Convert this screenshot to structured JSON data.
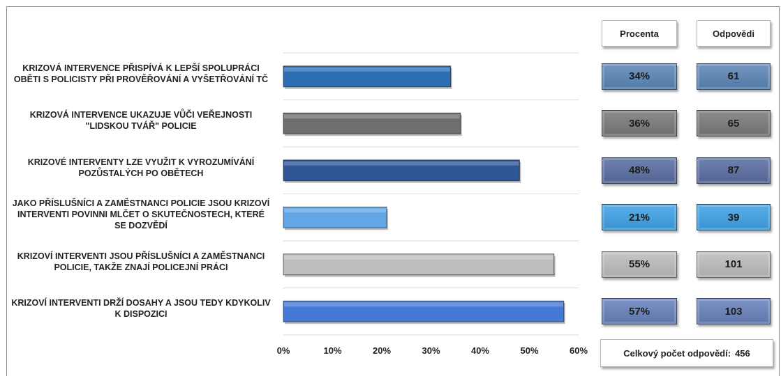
{
  "chart_data": {
    "type": "bar",
    "orientation": "horizontal",
    "categories": [
      "KRIZOVÁ INTERVENCE PŘISPÍVÁ K LEPŠÍ SPOLUPRÁCI OBĚTI S POLICISTY PŘI PROVĚŘOVÁNÍ A VYŠETŘOVÁNÍ TČ",
      "KRIZOVÁ INTERVENCE UKAZUJE VŮČI VEŘEJNOSTI \"LIDSKOU TVÁŘ\" POLICIE",
      "KRIZOVÉ INTERVENTY LZE VYUŽIT K VYROZUMÍVÁNÍ POZŮSTALÝCH PO OBĚTECH",
      "JAKO PŘÍSLUŠNÍCI A ZAMĚSTNANCI POLICIE JSOU KRIZOVÍ INTERVENTI POVINNI MLČET O SKUTEČNOSTECH, KTERÉ SE DOZVĚDÍ",
      "KRIZOVÍ INTERVENTI JSOU PŘÍSLUŠNÍCI A ZAMĚSTNANCI POLICIE, TAKŽE ZNAJÍ POLICEJNÍ PRÁCI",
      "KRIZOVÍ INTERVENTI DRŽÍ DOSAHY A JSOU TEDY KDYKOLIV K DISPOZICI"
    ],
    "values": [
      34,
      36,
      48,
      21,
      55,
      57
    ],
    "xlim": [
      0,
      60
    ],
    "xticks": [
      "0%",
      "10%",
      "20%",
      "30%",
      "40%",
      "50%",
      "60%"
    ],
    "grid": true,
    "colors": [
      "#2e6fb4",
      "#6e6e6e",
      "#2f5597",
      "#63a6e6",
      "#bdbdbd",
      "#4679d6"
    ],
    "table": {
      "header_percent": "Procenta",
      "header_count": "Odpovědi",
      "percent_labels": [
        "34%",
        "36%",
        "48%",
        "21%",
        "55%",
        "57%"
      ],
      "counts": [
        "61",
        "65",
        "87",
        "39",
        "101",
        "103"
      ],
      "box_colors": [
        "#5b86b7",
        "#7a7a7a",
        "#5a6ea3",
        "#3fa2e6",
        "#bdbdbd",
        "#6882bd"
      ],
      "total_label": "Celkový počet odpovědí:",
      "total_value": "456"
    }
  }
}
